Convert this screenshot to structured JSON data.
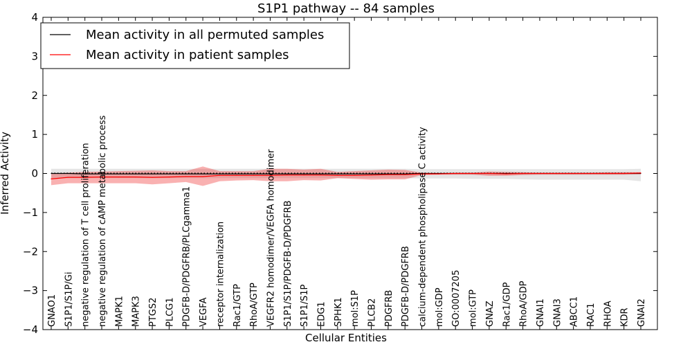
{
  "chart_data": {
    "type": "line",
    "title": "S1P1 pathway -- 84 samples",
    "xlabel": "Cellular Entities",
    "ylabel": "Inferred Activity",
    "ylim": [
      -4,
      4
    ],
    "yticks": [
      "4",
      "3",
      "2",
      "1",
      "0",
      "−1",
      "−2",
      "−3",
      "−4"
    ],
    "ytick_values": [
      4,
      3,
      2,
      1,
      0,
      -1,
      -2,
      -3,
      -4
    ],
    "legend": {
      "location": "top-left",
      "entries": [
        {
          "label": "Mean activity in all permuted samples",
          "color": "#000000"
        },
        {
          "label": "Mean activity in patient samples",
          "color": "#ff0000"
        }
      ]
    },
    "categories": [
      "GNAO1",
      "S1P1/S1P/Gi",
      "negative regulation of T cell proliferation",
      "negative regulation of cAMP metabolic process",
      "MAPK1",
      "MAPK3",
      "PTGS2",
      "PLCG1",
      "PDGFB-D/PDGFRB/PLCgamma1",
      "VEGFA",
      "receptor internalization",
      "Rac1/GTP",
      "RhoA/GTP",
      "VEGFR2 homodimer/VEGFA homodimer",
      "S1P1/S1P/PDGFB-D/PDGFRB",
      "S1P1/S1P",
      "EDG1",
      "SPHK1",
      "mol:S1P",
      "PLCB2",
      "PDGFRB",
      "PDGFB-D/PDGFRB",
      "calcium-dependent phospholipase C activity",
      "mol:GDP",
      "GO:0007205",
      "mol:GTP",
      "GNAZ",
      "Rac1/GDP",
      "RhoA/GDP",
      "GNAI1",
      "GNAI3",
      "ABCC1",
      "RAC1",
      "RHOA",
      "KDR",
      "GNAI2"
    ],
    "series": [
      {
        "name": "Mean activity in all permuted samples",
        "color": "#000000",
        "values": [
          0.0,
          0.0,
          -0.01,
          -0.01,
          -0.01,
          -0.01,
          -0.01,
          -0.01,
          -0.01,
          -0.01,
          -0.01,
          -0.01,
          -0.01,
          -0.01,
          -0.01,
          -0.01,
          -0.01,
          -0.01,
          -0.01,
          -0.01,
          -0.01,
          -0.01,
          0.0,
          0.0,
          0.0,
          0.0,
          0.0,
          0.0,
          0.0,
          0.0,
          0.0,
          0.0,
          0.0,
          0.0,
          0.0,
          0.0
        ],
        "band_upper": [
          0.12,
          0.12,
          0.12,
          0.12,
          0.12,
          0.12,
          0.12,
          0.12,
          0.12,
          0.12,
          0.12,
          0.12,
          0.12,
          0.12,
          0.12,
          0.12,
          0.12,
          0.12,
          0.12,
          0.12,
          0.12,
          0.12,
          0.11,
          0.11,
          0.11,
          0.11,
          0.11,
          0.11,
          0.11,
          0.11,
          0.11,
          0.11,
          0.11,
          0.11,
          0.11,
          0.12
        ],
        "band_lower": [
          -0.12,
          -0.12,
          -0.12,
          -0.12,
          -0.12,
          -0.12,
          -0.12,
          -0.12,
          -0.12,
          -0.12,
          -0.12,
          -0.12,
          -0.12,
          -0.12,
          -0.12,
          -0.12,
          -0.12,
          -0.12,
          -0.12,
          -0.12,
          -0.12,
          -0.12,
          -0.13,
          -0.13,
          -0.13,
          -0.14,
          -0.14,
          -0.14,
          -0.15,
          -0.16,
          -0.16,
          -0.16,
          -0.16,
          -0.16,
          -0.16,
          -0.2
        ]
      },
      {
        "name": "Mean activity in patient samples",
        "color": "#ff0000",
        "values": [
          -0.14,
          -0.1,
          -0.1,
          -0.09,
          -0.09,
          -0.09,
          -0.1,
          -0.09,
          -0.08,
          -0.08,
          -0.05,
          -0.05,
          -0.05,
          -0.05,
          -0.04,
          -0.04,
          -0.04,
          -0.05,
          -0.05,
          -0.04,
          -0.03,
          -0.03,
          -0.01,
          -0.01,
          0.0,
          0.0,
          0.0,
          -0.01,
          0.0,
          0.0,
          0.0,
          0.0,
          0.0,
          0.0,
          0.0,
          0.01
        ],
        "band_upper": [
          0.0,
          0.02,
          0.04,
          0.05,
          0.06,
          0.07,
          0.08,
          0.06,
          0.06,
          0.18,
          0.06,
          0.06,
          0.06,
          0.12,
          0.12,
          0.1,
          0.12,
          0.04,
          0.06,
          0.08,
          0.1,
          0.09,
          0.02,
          0.01,
          0.02,
          0.02,
          0.05,
          0.04,
          0.03,
          0.02,
          0.02,
          0.02,
          0.02,
          0.03,
          0.03,
          0.03
        ],
        "band_lower": [
          -0.3,
          -0.25,
          -0.25,
          -0.25,
          -0.25,
          -0.25,
          -0.28,
          -0.25,
          -0.22,
          -0.32,
          -0.2,
          -0.18,
          -0.17,
          -0.2,
          -0.2,
          -0.17,
          -0.18,
          -0.12,
          -0.14,
          -0.16,
          -0.15,
          -0.15,
          -0.04,
          -0.03,
          -0.03,
          -0.03,
          -0.06,
          -0.06,
          -0.04,
          -0.03,
          -0.03,
          -0.03,
          -0.03,
          -0.03,
          -0.03,
          -0.02
        ]
      }
    ],
    "reference_line": {
      "style": "dotted",
      "value": 0.01,
      "color": "#000000"
    },
    "grid": false
  }
}
